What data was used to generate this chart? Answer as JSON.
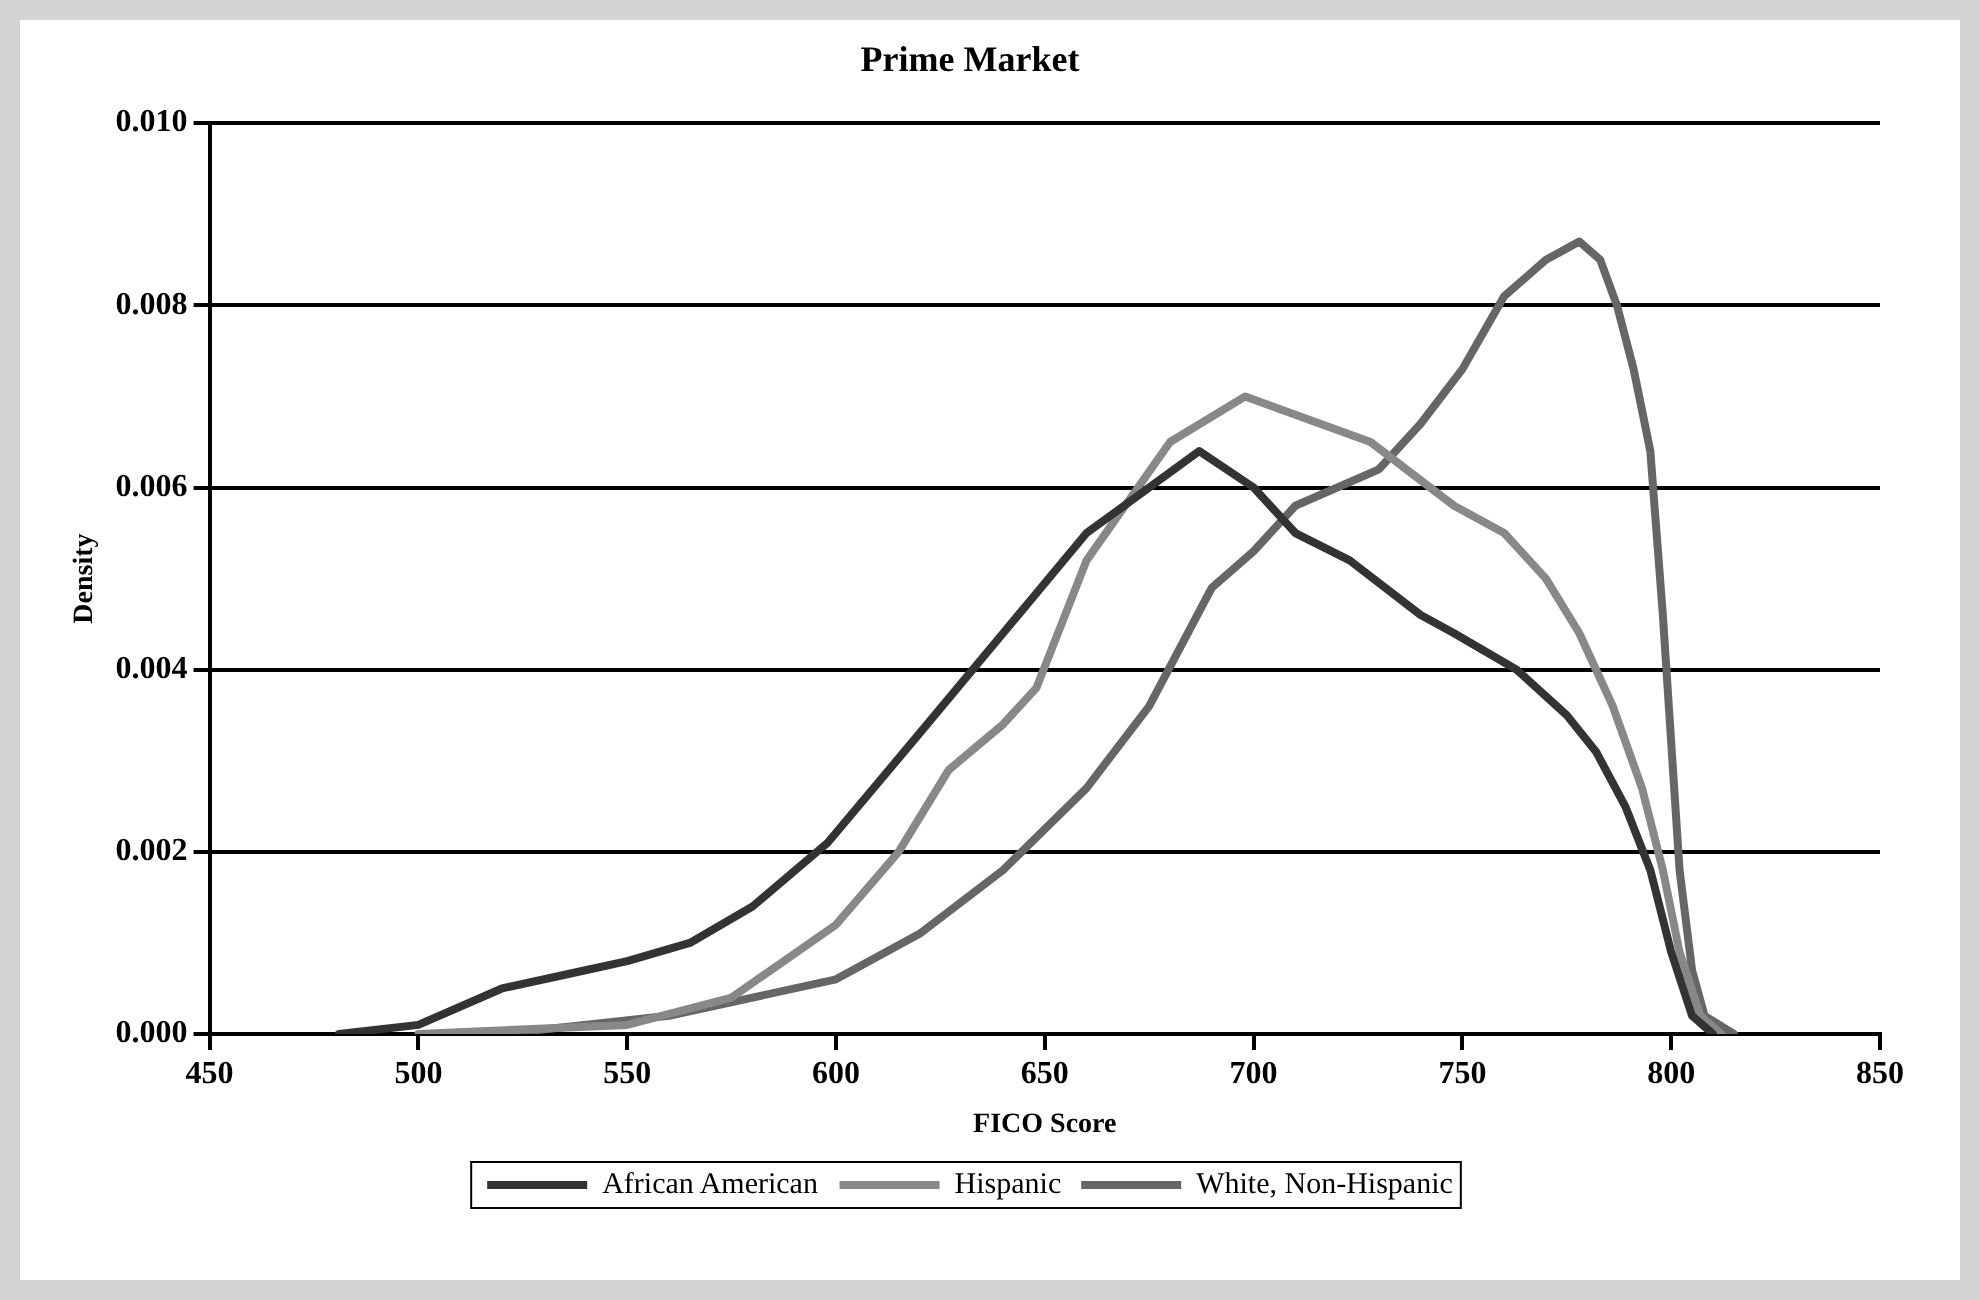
{
  "chart_data": {
    "type": "line",
    "title": "Prime Market",
    "xlabel": "FICO Score",
    "ylabel": "Density",
    "xlim": [
      450,
      850
    ],
    "xticks": [
      450,
      500,
      550,
      600,
      650,
      700,
      750,
      800,
      850
    ],
    "ylim": [
      0,
      0.01
    ],
    "yticks": [
      {
        "value": 0,
        "label": "0.000"
      },
      {
        "value": 0.002,
        "label": "0.002"
      },
      {
        "value": 0.004,
        "label": "0.004"
      },
      {
        "value": 0.006,
        "label": "0.006"
      },
      {
        "value": 0.008,
        "label": "0.008"
      },
      {
        "value": 0.01,
        "label": "0.010"
      }
    ],
    "grid": "y",
    "legend": "bottom",
    "marker": "none",
    "line_style": "solid",
    "series": [
      {
        "name": "African American",
        "color": "#333333",
        "x": [
          481,
          500,
          520,
          540,
          550,
          565,
          580,
          598,
          620,
          640,
          660,
          675,
          687,
          700,
          710,
          723,
          740,
          748,
          763,
          775,
          782,
          789,
          795,
          800,
          805,
          810
        ],
        "values": [
          0,
          0.0001,
          0.0005,
          0.0007,
          0.0008,
          0.001,
          0.0014,
          0.0021,
          0.0033,
          0.0044,
          0.0055,
          0.006,
          0.0064,
          0.006,
          0.0055,
          0.0052,
          0.0046,
          0.0044,
          0.004,
          0.0035,
          0.0031,
          0.0025,
          0.0018,
          0.0009,
          0.0002,
          0
        ]
      },
      {
        "name": "Hispanic",
        "color": "#888888",
        "x": [
          500,
          550,
          575,
          600,
          615,
          627,
          640,
          648,
          660,
          680,
          698,
          710,
          728,
          748,
          760,
          770,
          778,
          786,
          793,
          798,
          802,
          807,
          812
        ],
        "values": [
          0,
          0.0001,
          0.0004,
          0.0012,
          0.002,
          0.0029,
          0.0034,
          0.0038,
          0.0052,
          0.0065,
          0.007,
          0.0068,
          0.0065,
          0.0058,
          0.0055,
          0.005,
          0.0044,
          0.0036,
          0.0027,
          0.0018,
          0.0009,
          0.0002,
          0
        ]
      },
      {
        "name": "White, Non-Hispanic",
        "color": "#666666",
        "x": [
          520,
          560,
          600,
          620,
          640,
          660,
          675,
          690,
          700,
          710,
          730,
          740,
          750,
          760,
          770,
          778,
          783,
          787,
          791,
          795,
          798,
          802,
          805,
          808,
          815
        ],
        "values": [
          0,
          0.0002,
          0.0006,
          0.0011,
          0.0018,
          0.0027,
          0.0036,
          0.0049,
          0.0053,
          0.0058,
          0.0062,
          0.0067,
          0.0073,
          0.0081,
          0.0085,
          0.0087,
          0.0085,
          0.008,
          0.0073,
          0.0064,
          0.0046,
          0.0018,
          0.0007,
          0.0002,
          0
        ]
      }
    ]
  }
}
